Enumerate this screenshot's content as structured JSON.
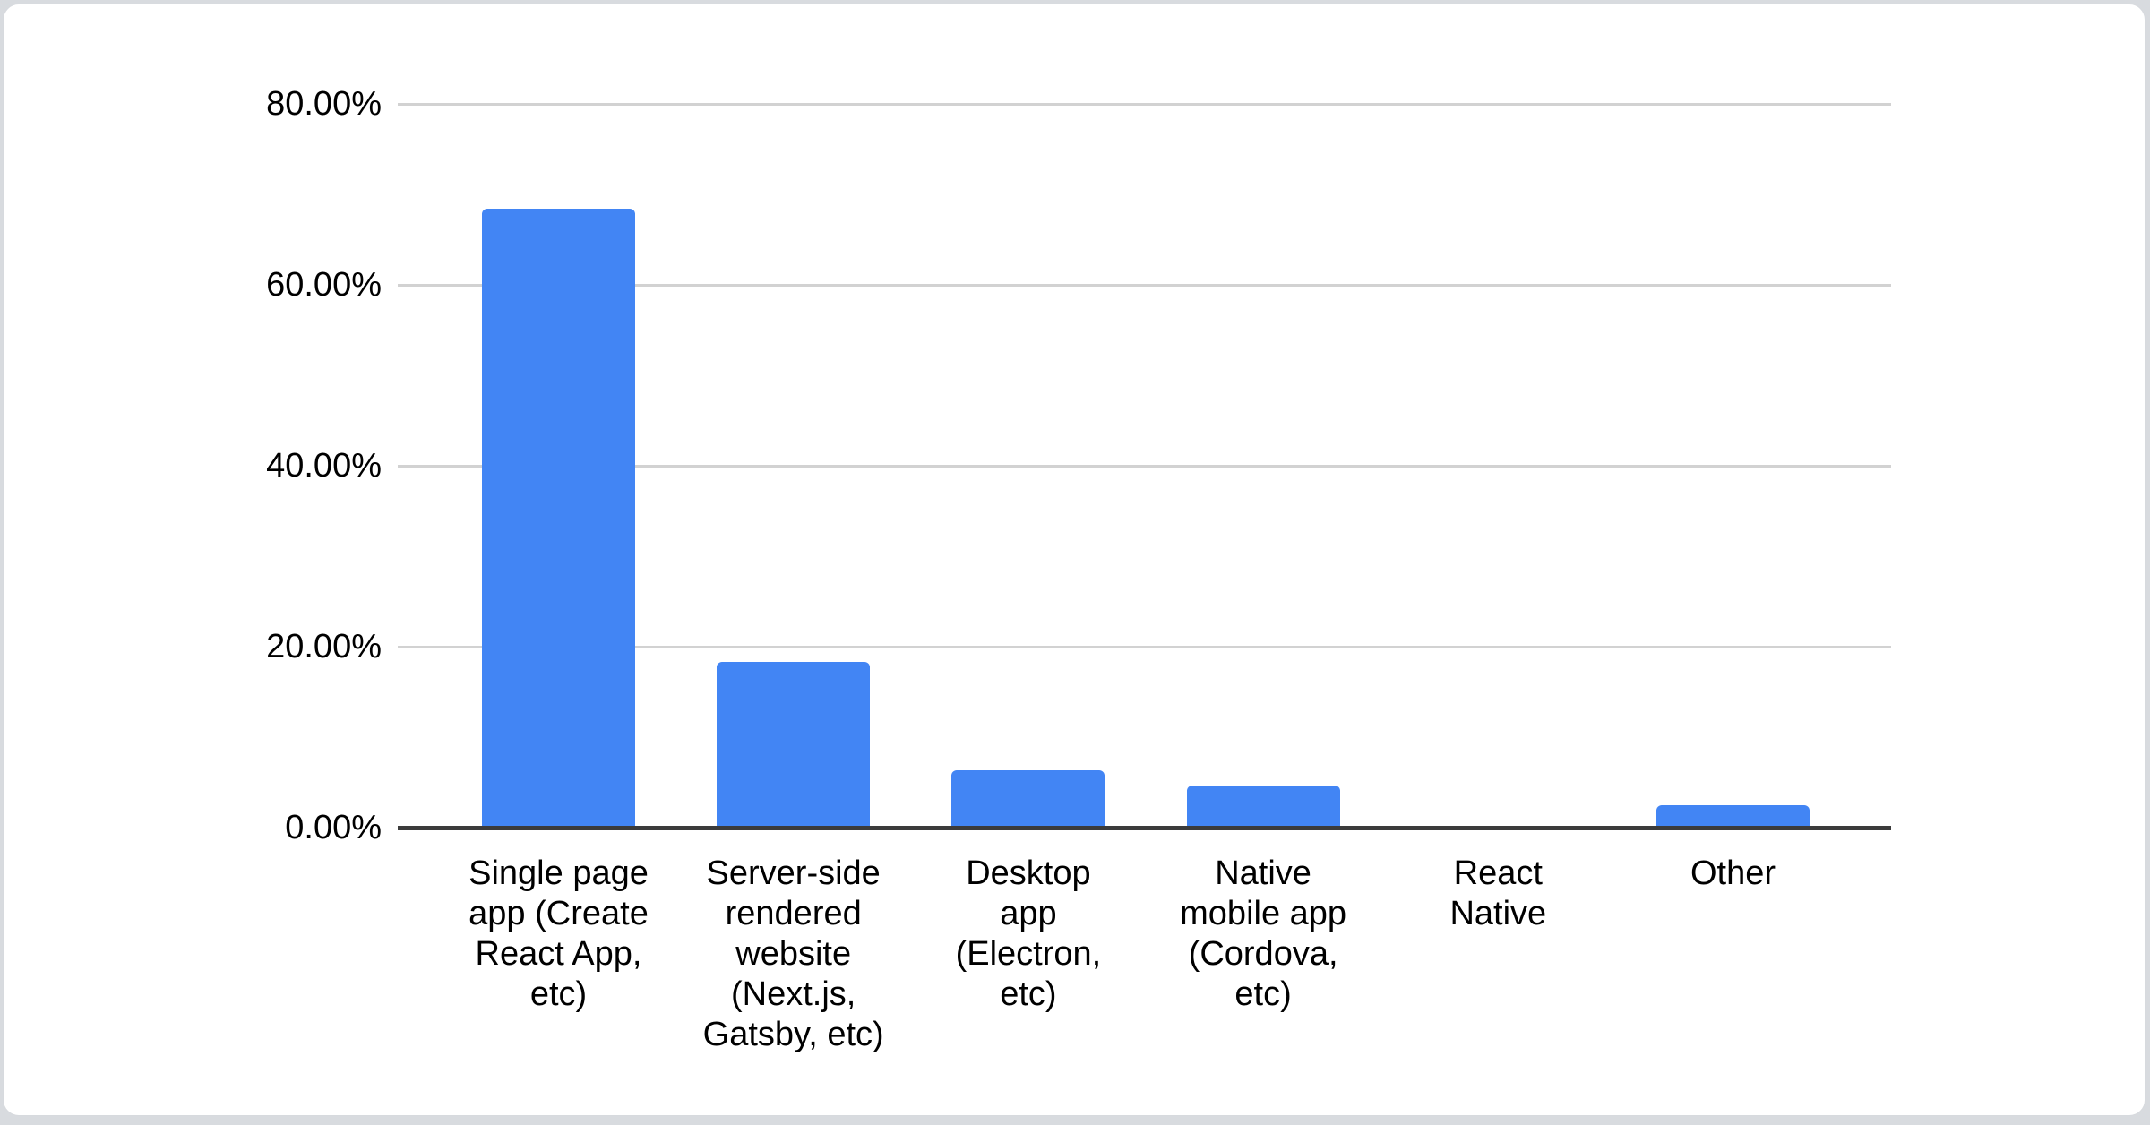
{
  "page": {
    "background_color": "#d8dbdf",
    "card": {
      "background_color": "#ffffff",
      "border_color": "#d7dade"
    }
  },
  "chart_data": {
    "type": "bar",
    "title": "",
    "xlabel": "",
    "ylabel": "",
    "categories": [
      "Single page app (Create React App, etc)",
      "Server-side rendered website (Next.js, Gatsby, etc)",
      "Desktop app (Electron, etc)",
      "Native mobile app (Cordova, etc)",
      "React Native",
      "Other"
    ],
    "category_display_lines": [
      "Single page\napp (Create\nReact App,\netc)",
      "Server-side\nrendered\nwebsite\n(Next.js,\nGatsby, etc)",
      "Desktop\napp\n(Electron,\netc)",
      "Native\nmobile app\n(Cordova,\netc)",
      "React\nNative",
      "Other"
    ],
    "values_percent": [
      68.4,
      18.3,
      6.3,
      4.7,
      0,
      2.5
    ],
    "ylim": [
      0,
      80
    ],
    "y_tick_values": [
      0,
      20,
      40,
      60,
      80
    ],
    "y_tick_labels": [
      "0.00%",
      "20.00%",
      "40.00%",
      "60.00%",
      "80.00%"
    ],
    "gridlines": "horizontal",
    "legend": "none",
    "colors": {
      "bar": "#4285f4",
      "gridline": "#d2d2d2",
      "axis_line": "#3b3b3b",
      "label_text": "#000000"
    }
  }
}
